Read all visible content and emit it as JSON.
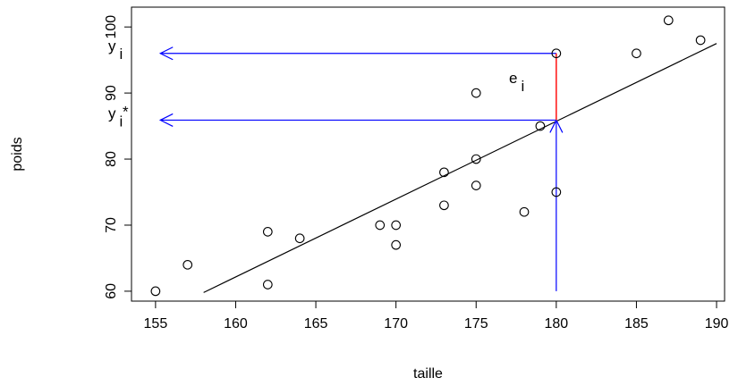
{
  "chart_data": {
    "type": "scatter",
    "title": "",
    "xlabel": "taille",
    "ylabel": "poids",
    "xlim": [
      153.5,
      190.5
    ],
    "ylim": [
      58.5,
      103
    ],
    "x_ticks": [
      155,
      160,
      165,
      170,
      175,
      180,
      185,
      190
    ],
    "y_ticks": [
      60,
      70,
      80,
      90,
      100
    ],
    "points": [
      {
        "x": 155,
        "y": 60
      },
      {
        "x": 157,
        "y": 64
      },
      {
        "x": 162,
        "y": 69
      },
      {
        "x": 162,
        "y": 61
      },
      {
        "x": 164,
        "y": 68
      },
      {
        "x": 169,
        "y": 70
      },
      {
        "x": 170,
        "y": 70
      },
      {
        "x": 170,
        "y": 67
      },
      {
        "x": 173,
        "y": 78
      },
      {
        "x": 173,
        "y": 73
      },
      {
        "x": 175,
        "y": 90
      },
      {
        "x": 175,
        "y": 80
      },
      {
        "x": 175,
        "y": 76
      },
      {
        "x": 178,
        "y": 72
      },
      {
        "x": 179,
        "y": 85
      },
      {
        "x": 180,
        "y": 96
      },
      {
        "x": 180,
        "y": 75
      },
      {
        "x": 185,
        "y": 96
      },
      {
        "x": 187,
        "y": 101
      },
      {
        "x": 189,
        "y": 98
      }
    ],
    "regression_line": {
      "x": [
        158,
        190
      ],
      "y": [
        59.8,
        97.5
      ]
    },
    "annotations": {
      "observed": {
        "x": 180,
        "y": 96,
        "label_main": "y",
        "label_sub": "i",
        "color": "#0000ff"
      },
      "fitted": {
        "x": 180,
        "y": 85.9,
        "label_main": "y",
        "label_sub": "i",
        "label_sup": "*",
        "color": "#0000ff"
      },
      "residual": {
        "x": 180,
        "y_from": 85.9,
        "y_to": 96,
        "label_main": "e",
        "label_sub": "i",
        "color": "#ff0000"
      },
      "vertical_arrow": {
        "x": 180,
        "y_from": 60,
        "y_to": 85.9,
        "color": "#0000ff"
      },
      "arrow_end_x": 155.3
    }
  }
}
